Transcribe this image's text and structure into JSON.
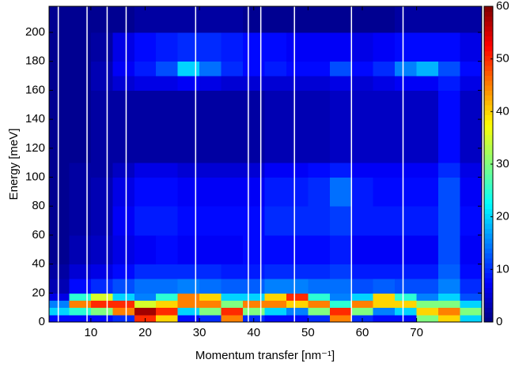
{
  "chart_data": {
    "type": "heatmap",
    "xlabel": "Momentum transfer [nm⁻¹]",
    "ylabel": "Energy [meV]",
    "x": [
      2,
      6,
      10,
      14,
      18,
      22,
      26,
      30,
      34,
      38,
      42,
      46,
      50,
      54,
      58,
      62,
      66,
      70,
      74,
      78,
      82
    ],
    "y": [
      0,
      5,
      10,
      15,
      20,
      30,
      40,
      60,
      80,
      100,
      110,
      160,
      170,
      180,
      200,
      218
    ],
    "z": [
      [
        8,
        8,
        8,
        10,
        50,
        40,
        8,
        10,
        45,
        10,
        8,
        8,
        10,
        45,
        10,
        8,
        8,
        30,
        40,
        20
      ],
      [
        20,
        25,
        30,
        45,
        58,
        50,
        20,
        30,
        50,
        30,
        20,
        15,
        30,
        50,
        30,
        15,
        20,
        40,
        45,
        30
      ],
      [
        15,
        45,
        50,
        50,
        35,
        40,
        45,
        45,
        30,
        45,
        45,
        40,
        45,
        25,
        45,
        40,
        40,
        30,
        30,
        20
      ],
      [
        6,
        25,
        35,
        20,
        15,
        25,
        45,
        40,
        20,
        20,
        40,
        50,
        25,
        15,
        20,
        40,
        25,
        15,
        20,
        12
      ],
      [
        3,
        8,
        10,
        12,
        14,
        14,
        15,
        14,
        13,
        13,
        15,
        15,
        14,
        14,
        12,
        13,
        12,
        12,
        15,
        10
      ],
      [
        2,
        5,
        6,
        8,
        10,
        10,
        10,
        10,
        9,
        9,
        10,
        10,
        10,
        11,
        9,
        9,
        9,
        9,
        13,
        8
      ],
      [
        1,
        3,
        4,
        6,
        7,
        8,
        7,
        7,
        7,
        8,
        8,
        8,
        8,
        9,
        7,
        7,
        7,
        7,
        12,
        7
      ],
      [
        1,
        2,
        3,
        7,
        9,
        9,
        8,
        8,
        8,
        8,
        10,
        10,
        10,
        11,
        9,
        9,
        9,
        9,
        12,
        8
      ],
      [
        1,
        2,
        3,
        6,
        8,
        8,
        7,
        7,
        7,
        7,
        9,
        9,
        10,
        14,
        9,
        8,
        8,
        8,
        12,
        7
      ],
      [
        1,
        2,
        2,
        4,
        6,
        6,
        5,
        5,
        5,
        5,
        7,
        7,
        8,
        9,
        7,
        7,
        7,
        7,
        10,
        6
      ],
      [
        1,
        1,
        2,
        2,
        2,
        2,
        2,
        2,
        2,
        2,
        3,
        3,
        3,
        4,
        4,
        4,
        4,
        4,
        8,
        4
      ],
      [
        1,
        1,
        3,
        5,
        6,
        6,
        7,
        6,
        5,
        5,
        5,
        5,
        5,
        6,
        5,
        6,
        7,
        7,
        9,
        6
      ],
      [
        1,
        1,
        3,
        7,
        9,
        12,
        20,
        14,
        10,
        8,
        9,
        8,
        8,
        12,
        8,
        10,
        15,
        18,
        12,
        8
      ],
      [
        1,
        1,
        2,
        6,
        8,
        9,
        10,
        10,
        9,
        8,
        8,
        7,
        7,
        7,
        6,
        7,
        8,
        8,
        8,
        6
      ],
      [
        1,
        1,
        1,
        1,
        2,
        2,
        2,
        2,
        2,
        1,
        1,
        1,
        1,
        1,
        1,
        1,
        2,
        2,
        2,
        2
      ]
    ],
    "vlines": [
      4,
      9.3,
      13,
      16.5,
      29.3,
      39,
      41.3,
      47.5,
      58,
      67.5
    ],
    "xlim": [
      2.3,
      82
    ],
    "ylim": [
      0,
      218
    ],
    "xticks": [
      10,
      20,
      30,
      40,
      50,
      60,
      70
    ],
    "yticks": [
      0,
      20,
      40,
      60,
      80,
      100,
      120,
      140,
      160,
      180,
      200
    ],
    "clim": [
      0,
      60
    ],
    "cticks": [
      0,
      10,
      20,
      30,
      40,
      50,
      60
    ],
    "colormap": "jet"
  }
}
